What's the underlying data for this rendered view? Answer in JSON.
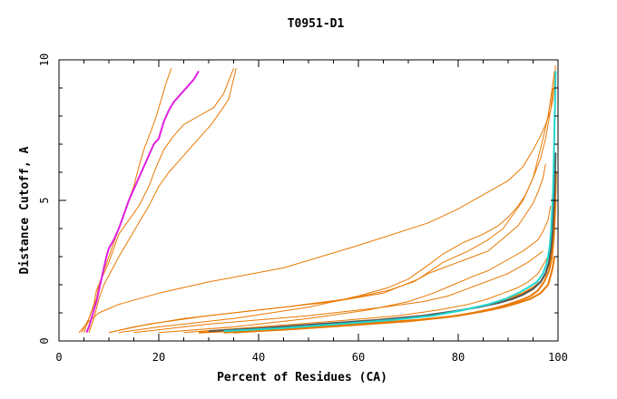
{
  "chart_data": {
    "type": "line",
    "title": "T0951-D1",
    "xlabel": "Percent of Residues (CA)",
    "ylabel": "Distance Cutoff, A",
    "xlim": [
      0,
      100
    ],
    "ylim": [
      0,
      10
    ],
    "xticks": [
      "0",
      "20",
      "40",
      "60",
      "80",
      "100"
    ],
    "yticks": [
      "0",
      "5",
      "10"
    ],
    "grid": false,
    "legend": "none",
    "colors": {
      "orange": "#e87800",
      "magenta": "#e020e0",
      "cyan": "#20d8d0",
      "dark": "#555555",
      "axis": "#000000"
    },
    "series": [
      {
        "color": "orange",
        "width": 1,
        "x": [
          4.5,
          6,
          7.5,
          8,
          9,
          10,
          11,
          12,
          13.5,
          15,
          16,
          17,
          18.5,
          19.5,
          20.5,
          21.5,
          22.5
        ],
        "y": [
          0.3,
          0.8,
          1.5,
          2.0,
          2.5,
          3.0,
          3.5,
          4.0,
          4.8,
          5.5,
          6.2,
          6.8,
          7.5,
          8.0,
          8.6,
          9.2,
          9.7
        ]
      },
      {
        "color": "orange",
        "width": 1,
        "x": [
          5,
          6,
          7,
          7.5,
          8.5,
          10,
          11,
          12,
          14,
          16,
          18,
          19.5,
          21,
          23,
          25,
          28,
          31,
          33,
          35
        ],
        "y": [
          0.3,
          0.8,
          1.3,
          1.8,
          2.2,
          2.8,
          3.3,
          3.8,
          4.3,
          4.8,
          5.5,
          6.2,
          6.8,
          7.3,
          7.7,
          8.0,
          8.3,
          8.8,
          9.7
        ]
      },
      {
        "color": "orange",
        "width": 1,
        "x": [
          6,
          7,
          8,
          9,
          10.5,
          12,
          14,
          16,
          18,
          20,
          22,
          25,
          28,
          30.5,
          32.5,
          34,
          35.5
        ],
        "y": [
          0.3,
          0.8,
          1.5,
          2.0,
          2.5,
          3.0,
          3.6,
          4.2,
          4.8,
          5.5,
          6.0,
          6.6,
          7.2,
          7.7,
          8.2,
          8.6,
          9.7
        ]
      },
      {
        "color": "orange",
        "width": 1,
        "x": [
          4,
          6,
          8,
          12,
          20,
          30,
          45,
          60,
          74,
          80,
          85,
          90,
          93,
          95,
          96.5,
          97.5,
          98.5,
          99,
          99.2,
          99.4,
          99.5
        ],
        "y": [
          0.3,
          0.7,
          1.0,
          1.3,
          1.7,
          2.1,
          2.6,
          3.4,
          4.2,
          4.7,
          5.2,
          5.7,
          6.2,
          6.8,
          7.3,
          7.7,
          8.2,
          8.6,
          9.0,
          9.5,
          9.8
        ]
      },
      {
        "color": "orange",
        "width": 1,
        "x": [
          10,
          15,
          25,
          40,
          55,
          65,
          72,
          77,
          82,
          86,
          89,
          91,
          93,
          95,
          96,
          97,
          98,
          98.5,
          99,
          99.3
        ],
        "y": [
          0.3,
          0.5,
          0.8,
          1.1,
          1.4,
          1.7,
          2.2,
          2.8,
          3.2,
          3.6,
          4.0,
          4.5,
          5.0,
          5.8,
          6.5,
          7.2,
          8.0,
          8.6,
          9.2,
          9.6
        ]
      },
      {
        "color": "orange",
        "width": 1,
        "x": [
          12,
          20,
          35,
          50,
          60,
          66,
          70,
          74,
          77,
          81,
          85,
          88,
          90,
          92,
          93.5,
          95,
          96.5,
          97.5,
          98.5,
          99
        ],
        "y": [
          0.3,
          0.5,
          0.8,
          1.2,
          1.6,
          1.9,
          2.2,
          2.7,
          3.1,
          3.5,
          3.8,
          4.1,
          4.4,
          4.8,
          5.2,
          5.8,
          6.5,
          7.2,
          8.2,
          9.0
        ]
      },
      {
        "color": "orange",
        "width": 1,
        "x": [
          10,
          18,
          30,
          45,
          58,
          66,
          71,
          74,
          77,
          80,
          83,
          86,
          88,
          90,
          92,
          93.5,
          95,
          96,
          97,
          97.5
        ],
        "y": [
          0.3,
          0.6,
          0.9,
          1.2,
          1.5,
          1.8,
          2.1,
          2.4,
          2.6,
          2.8,
          3.0,
          3.2,
          3.5,
          3.8,
          4.1,
          4.5,
          4.9,
          5.3,
          5.8,
          6.3
        ]
      },
      {
        "color": "orange",
        "width": 1,
        "x": [
          20,
          35,
          50,
          62,
          70,
          75,
          79,
          83,
          86,
          89,
          91,
          93,
          94.5,
          96,
          97,
          98,
          98.5
        ],
        "y": [
          0.3,
          0.5,
          0.8,
          1.1,
          1.4,
          1.7,
          2.0,
          2.3,
          2.5,
          2.8,
          3.0,
          3.2,
          3.4,
          3.6,
          3.9,
          4.3,
          4.8
        ]
      },
      {
        "color": "orange",
        "width": 1,
        "x": [
          15,
          30,
          50,
          65,
          73,
          78,
          81,
          84,
          87,
          90,
          92,
          94,
          95.5,
          97
        ],
        "y": [
          0.3,
          0.6,
          0.9,
          1.2,
          1.4,
          1.6,
          1.8,
          2.0,
          2.2,
          2.4,
          2.6,
          2.8,
          3.0,
          3.2
        ]
      },
      {
        "color": "orange",
        "width": 1,
        "x": [
          25,
          40,
          55,
          68,
          76,
          82,
          86,
          89,
          92,
          94,
          96,
          97,
          98
        ],
        "y": [
          0.3,
          0.5,
          0.7,
          0.9,
          1.1,
          1.3,
          1.5,
          1.7,
          1.9,
          2.1,
          2.4,
          2.7,
          3.0
        ]
      },
      {
        "color": "orange",
        "width": 2,
        "x": [
          28,
          40,
          55,
          68,
          76,
          81,
          85,
          88,
          91,
          93,
          95,
          96.5,
          97.5,
          98.3,
          98.8,
          99.1,
          99.3,
          99.5,
          99.6
        ],
        "y": [
          0.3,
          0.4,
          0.6,
          0.8,
          0.95,
          1.1,
          1.25,
          1.4,
          1.55,
          1.7,
          1.9,
          2.1,
          2.4,
          2.8,
          3.3,
          3.9,
          4.6,
          5.3,
          6.0
        ]
      },
      {
        "color": "orange",
        "width": 2,
        "x": [
          33,
          45,
          58,
          70,
          78,
          83,
          87,
          90,
          92.5,
          94.5,
          96,
          97.2,
          98.2,
          98.8,
          99.2,
          99.5
        ],
        "y": [
          0.3,
          0.4,
          0.55,
          0.7,
          0.85,
          1.0,
          1.15,
          1.3,
          1.45,
          1.6,
          1.8,
          2.1,
          2.5,
          3.0,
          3.8,
          5.0
        ]
      },
      {
        "color": "orange",
        "width": 2,
        "x": [
          35,
          48,
          60,
          72,
          80,
          85,
          89,
          92,
          94.5,
          96.5,
          98,
          98.8,
          99.3
        ],
        "y": [
          0.3,
          0.45,
          0.6,
          0.75,
          0.9,
          1.05,
          1.2,
          1.35,
          1.5,
          1.7,
          2.0,
          2.5,
          3.0
        ]
      },
      {
        "color": "dark",
        "width": 2,
        "x": [
          30,
          40,
          52,
          64,
          73,
          79,
          84,
          88,
          91,
          93,
          95,
          96.5,
          97.5,
          98.2,
          98.6,
          98.9,
          99.1,
          99.3,
          99.4,
          99.5
        ],
        "y": [
          0.35,
          0.45,
          0.6,
          0.75,
          0.9,
          1.05,
          1.2,
          1.35,
          1.5,
          1.65,
          1.85,
          2.1,
          2.4,
          2.8,
          3.3,
          3.9,
          4.6,
          5.3,
          6.0,
          6.7
        ]
      },
      {
        "color": "cyan",
        "width": 2,
        "x": [
          33,
          44,
          56,
          67,
          75,
          81,
          86,
          89.5,
          92,
          94,
          95.8,
          97,
          97.8,
          98.3,
          98.6,
          98.8,
          99.0,
          99.1,
          99.2,
          99.3,
          99.4,
          99.5
        ],
        "y": [
          0.35,
          0.45,
          0.6,
          0.75,
          0.9,
          1.1,
          1.3,
          1.5,
          1.7,
          1.9,
          2.1,
          2.4,
          2.8,
          3.3,
          3.9,
          4.6,
          5.3,
          6.0,
          6.8,
          7.6,
          8.4,
          9.6
        ]
      },
      {
        "color": "magenta",
        "width": 2,
        "x": [
          5.5,
          6,
          6.5,
          7,
          7.5,
          8,
          8.5,
          9,
          9.5,
          10,
          11,
          12,
          13,
          14,
          15,
          16,
          17,
          18,
          19,
          20,
          21,
          22,
          23,
          24,
          25,
          26,
          27,
          28
        ],
        "y": [
          0.3,
          0.5,
          0.8,
          1.1,
          1.4,
          1.8,
          2.2,
          2.6,
          3.0,
          3.3,
          3.6,
          4.0,
          4.5,
          5.0,
          5.4,
          5.8,
          6.2,
          6.6,
          7.0,
          7.2,
          7.8,
          8.2,
          8.5,
          8.7,
          8.9,
          9.1,
          9.3,
          9.6
        ]
      }
    ]
  }
}
